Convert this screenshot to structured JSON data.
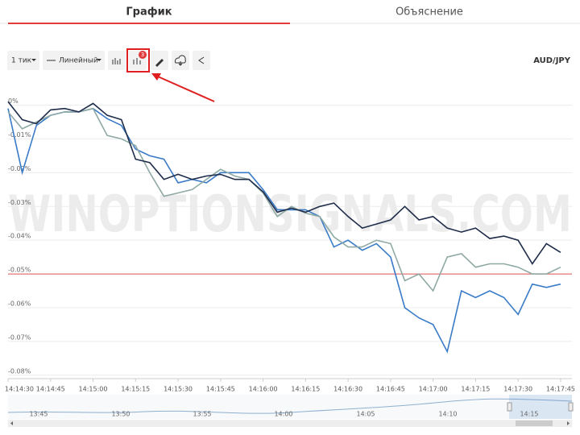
{
  "tabs": [
    "График",
    "Объяснение"
  ],
  "toolbar": {
    "interval": "1 тик",
    "chart_style": "Линейный",
    "badge": "3",
    "symbol": "AUD/JPY"
  },
  "watermark": "WINOPTIONSIGNALS.COM",
  "navigator": {
    "labels": [
      "13:45",
      "13:50",
      "13:55",
      "14:00",
      "14:05",
      "14:10",
      "14:15"
    ]
  },
  "chart_data": {
    "type": "line",
    "x": [
      "14:14:30",
      "14:14:35",
      "14:14:40",
      "14:14:45",
      "14:14:50",
      "14:14:55",
      "14:15:00",
      "14:15:05",
      "14:15:10",
      "14:15:15",
      "14:15:20",
      "14:15:25",
      "14:15:30",
      "14:15:35",
      "14:15:40",
      "14:15:45",
      "14:15:50",
      "14:15:55",
      "14:16:00",
      "14:16:05",
      "14:16:10",
      "14:16:15",
      "14:16:20",
      "14:16:25",
      "14:16:30",
      "14:16:35",
      "14:16:40",
      "14:16:45",
      "14:16:50",
      "14:16:55",
      "14:17:00",
      "14:17:05",
      "14:17:10",
      "14:17:15",
      "14:17:20",
      "14:17:25",
      "14:17:30",
      "14:17:35",
      "14:17:40",
      "14:17:45"
    ],
    "series": [
      {
        "color": "#3a7bc8",
        "values": [
          -0.001,
          -0.02,
          -0.006,
          -0.003,
          -0.002,
          -0.002,
          -0.001,
          -0.004,
          -0.006,
          -0.013,
          -0.015,
          -0.016,
          -0.023,
          -0.022,
          -0.023,
          -0.02,
          -0.02,
          -0.02,
          -0.025,
          -0.031,
          -0.031,
          -0.031,
          -0.033,
          -0.042,
          -0.04,
          -0.043,
          -0.041,
          -0.045,
          -0.06,
          -0.063,
          -0.065,
          -0.073,
          -0.055,
          -0.057,
          -0.055,
          -0.057,
          -0.062,
          -0.053,
          -0.054,
          -0.053
        ]
      },
      {
        "color": "#8fa9a5",
        "values": [
          -0.002,
          -0.007,
          -0.005,
          -0.003,
          -0.002,
          -0.002,
          -0.001,
          -0.009,
          -0.01,
          -0.012,
          -0.02,
          -0.027,
          -0.026,
          -0.025,
          -0.022,
          -0.019,
          -0.021,
          -0.022,
          -0.026,
          -0.033,
          -0.03,
          -0.032,
          -0.033,
          -0.039,
          -0.042,
          -0.042,
          -0.04,
          -0.041,
          -0.052,
          -0.05,
          -0.055,
          -0.045,
          -0.044,
          -0.048,
          -0.047,
          -0.047,
          -0.048,
          -0.05,
          -0.05,
          -0.048
        ]
      },
      {
        "color": "#1f2d4a",
        "values": [
          0.001,
          -0.0043,
          -0.0055,
          -0.0014,
          -0.001,
          -0.002,
          0.0005,
          -0.003,
          -0.0043,
          -0.016,
          -0.017,
          -0.022,
          -0.0205,
          -0.022,
          -0.021,
          -0.0205,
          -0.022,
          -0.022,
          -0.0257,
          -0.0317,
          -0.0305,
          -0.0317,
          -0.03,
          -0.029,
          -0.033,
          -0.0364,
          -0.0352,
          -0.034,
          -0.03,
          -0.034,
          -0.033,
          -0.0364,
          -0.0376,
          -0.0364,
          -0.0395,
          -0.0388,
          -0.04,
          -0.047,
          -0.041,
          -0.0436
        ]
      }
    ],
    "xlim": [
      "14:14:30",
      "14:17:49"
    ],
    "xticks": [
      "14:14:30",
      "14:14:45",
      "14:15:00",
      "14:15:15",
      "14:15:30",
      "14:15:45",
      "14:16:00",
      "14:16:15",
      "14:16:30",
      "14:16:45",
      "14:17:00",
      "14:17:15",
      "14:17:30",
      "14:17:45"
    ],
    "ylim": [
      -0.081,
      0.008
    ],
    "yticks": [
      {
        "value": 0,
        "label": "0%"
      },
      {
        "value": -0.01,
        "label": "-0.01%"
      },
      {
        "value": -0.02,
        "label": "-0.02%"
      },
      {
        "value": -0.03,
        "label": "-0.03%"
      },
      {
        "value": -0.04,
        "label": "-0.04%"
      },
      {
        "value": -0.05,
        "label": "-0.05%"
      },
      {
        "value": -0.06,
        "label": "-0.06%"
      },
      {
        "value": -0.07,
        "label": "-0.07%"
      },
      {
        "value": -0.08,
        "label": "-0.08%"
      }
    ],
    "grid": true,
    "hline": {
      "value": -0.05,
      "color": "#e05555"
    }
  }
}
